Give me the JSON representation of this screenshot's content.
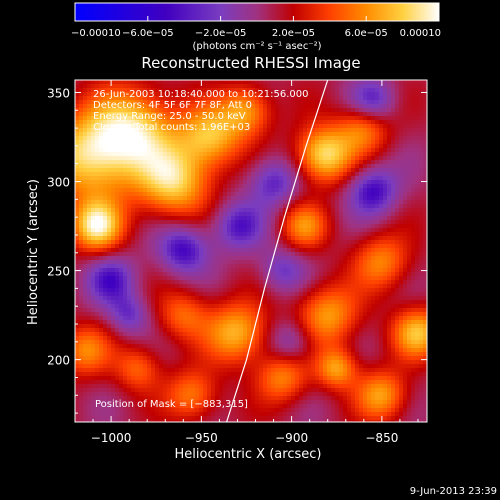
{
  "chart_data": {
    "type": "heatmap",
    "title": "Reconstructed RHESSI Image",
    "xlabel": "Heliocentric X (arcsec)",
    "ylabel": "Heliocentric Y (arcsec)",
    "xlim": [
      -1020,
      -825
    ],
    "ylim": [
      165,
      357
    ],
    "x_ticks": [
      {
        "value": -1000,
        "label": "−1000"
      },
      {
        "value": -950,
        "label": "−950"
      },
      {
        "value": -900,
        "label": "−900"
      },
      {
        "value": -850,
        "label": "−850"
      }
    ],
    "y_ticks": [
      {
        "value": 200,
        "label": "200"
      },
      {
        "value": 250,
        "label": "250"
      },
      {
        "value": 300,
        "label": "300"
      },
      {
        "value": 350,
        "label": "350"
      }
    ],
    "colorbar": {
      "range": [
        -0.0001,
        0.0001
      ],
      "ticks": [
        {
          "value": -0.0001,
          "label": "−0.00010"
        },
        {
          "value": -6e-05,
          "label": "−6.0e−05"
        },
        {
          "value": -2e-05,
          "label": "−2.0e−05"
        },
        {
          "value": 2e-05,
          "label": "2.0e−05"
        },
        {
          "value": 6e-05,
          "label": "6.0e−05"
        },
        {
          "value": 0.0001,
          "label": "0.00010"
        }
      ],
      "units": "(photons cm⁻² s⁻¹ asec⁻²)"
    },
    "annotations": {
      "time_range": "26-Jun-2003 10:18:40.000 to 10:21:56.000",
      "detectors": "Detectors: 4F 5F 6F 7F 8F, Att 0",
      "energy_range": "Energy Range: 25.0 - 50.0 keV",
      "method_counts": "Clean    Total counts: 1.96E+03",
      "position_of_mask": "Position of Mask = [−883,315]"
    },
    "limb_curve": [
      {
        "x": -936,
        "y": 165
      },
      {
        "x": -925,
        "y": 200
      },
      {
        "x": -915,
        "y": 240
      },
      {
        "x": -904,
        "y": 280
      },
      {
        "x": -892,
        "y": 320
      },
      {
        "x": -880,
        "y": 357
      }
    ],
    "sources": [
      {
        "x": -1010,
        "y": 315,
        "amp": 0.0001,
        "sigma": 18
      },
      {
        "x": -985,
        "y": 330,
        "amp": 8e-05,
        "sigma": 16
      },
      {
        "x": -965,
        "y": 300,
        "amp": 9e-05,
        "sigma": 14
      },
      {
        "x": -1008,
        "y": 275,
        "amp": 0.0001,
        "sigma": 10
      },
      {
        "x": -945,
        "y": 325,
        "amp": 8e-05,
        "sigma": 12
      },
      {
        "x": -925,
        "y": 340,
        "amp": 7e-05,
        "sigma": 10
      },
      {
        "x": -882,
        "y": 315,
        "amp": 0.0001,
        "sigma": 11
      },
      {
        "x": -860,
        "y": 330,
        "amp": 6e-05,
        "sigma": 10
      },
      {
        "x": -893,
        "y": 275,
        "amp": 6e-05,
        "sigma": 9
      },
      {
        "x": -930,
        "y": 215,
        "amp": 8e-05,
        "sigma": 12
      },
      {
        "x": -960,
        "y": 225,
        "amp": 5e-05,
        "sigma": 10
      },
      {
        "x": -880,
        "y": 225,
        "amp": 7e-05,
        "sigma": 12
      },
      {
        "x": -850,
        "y": 255,
        "amp": 6e-05,
        "sigma": 11
      },
      {
        "x": -830,
        "y": 215,
        "amp": 8e-05,
        "sigma": 10
      },
      {
        "x": -850,
        "y": 180,
        "amp": 7e-05,
        "sigma": 10
      },
      {
        "x": -955,
        "y": 180,
        "amp": 6e-05,
        "sigma": 10
      },
      {
        "x": -1015,
        "y": 205,
        "amp": 6e-05,
        "sigma": 10
      },
      {
        "x": -985,
        "y": 195,
        "amp": 5e-05,
        "sigma": 9
      },
      {
        "x": -905,
        "y": 190,
        "amp": 6e-05,
        "sigma": 10
      },
      {
        "x": -875,
        "y": 195,
        "amp": 7e-05,
        "sigma": 8
      },
      {
        "x": -1000,
        "y": 245,
        "amp": -5e-05,
        "sigma": 10
      },
      {
        "x": -960,
        "y": 262,
        "amp": -6e-05,
        "sigma": 10
      },
      {
        "x": -930,
        "y": 275,
        "amp": -5e-05,
        "sigma": 10
      },
      {
        "x": -910,
        "y": 300,
        "amp": -5e-05,
        "sigma": 10
      },
      {
        "x": -855,
        "y": 295,
        "amp": -6e-05,
        "sigma": 10
      },
      {
        "x": -905,
        "y": 250,
        "amp": -4e-05,
        "sigma": 9
      },
      {
        "x": -990,
        "y": 225,
        "amp": -4e-05,
        "sigma": 8
      },
      {
        "x": -855,
        "y": 345,
        "amp": -5e-05,
        "sigma": 9
      },
      {
        "x": -900,
        "y": 210,
        "amp": -4e-05,
        "sigma": 9
      }
    ]
  },
  "footer": {
    "timestamp": "9-Jun-2013 23:39"
  },
  "colors": {
    "background": "#000000",
    "limb": "#ffffff",
    "colormap": [
      "#0000ff",
      "#4000c0",
      "#7a3dc0",
      "#a03280",
      "#c00000",
      "#ff4000",
      "#ff8c00",
      "#ffd040",
      "#ffffff"
    ]
  }
}
